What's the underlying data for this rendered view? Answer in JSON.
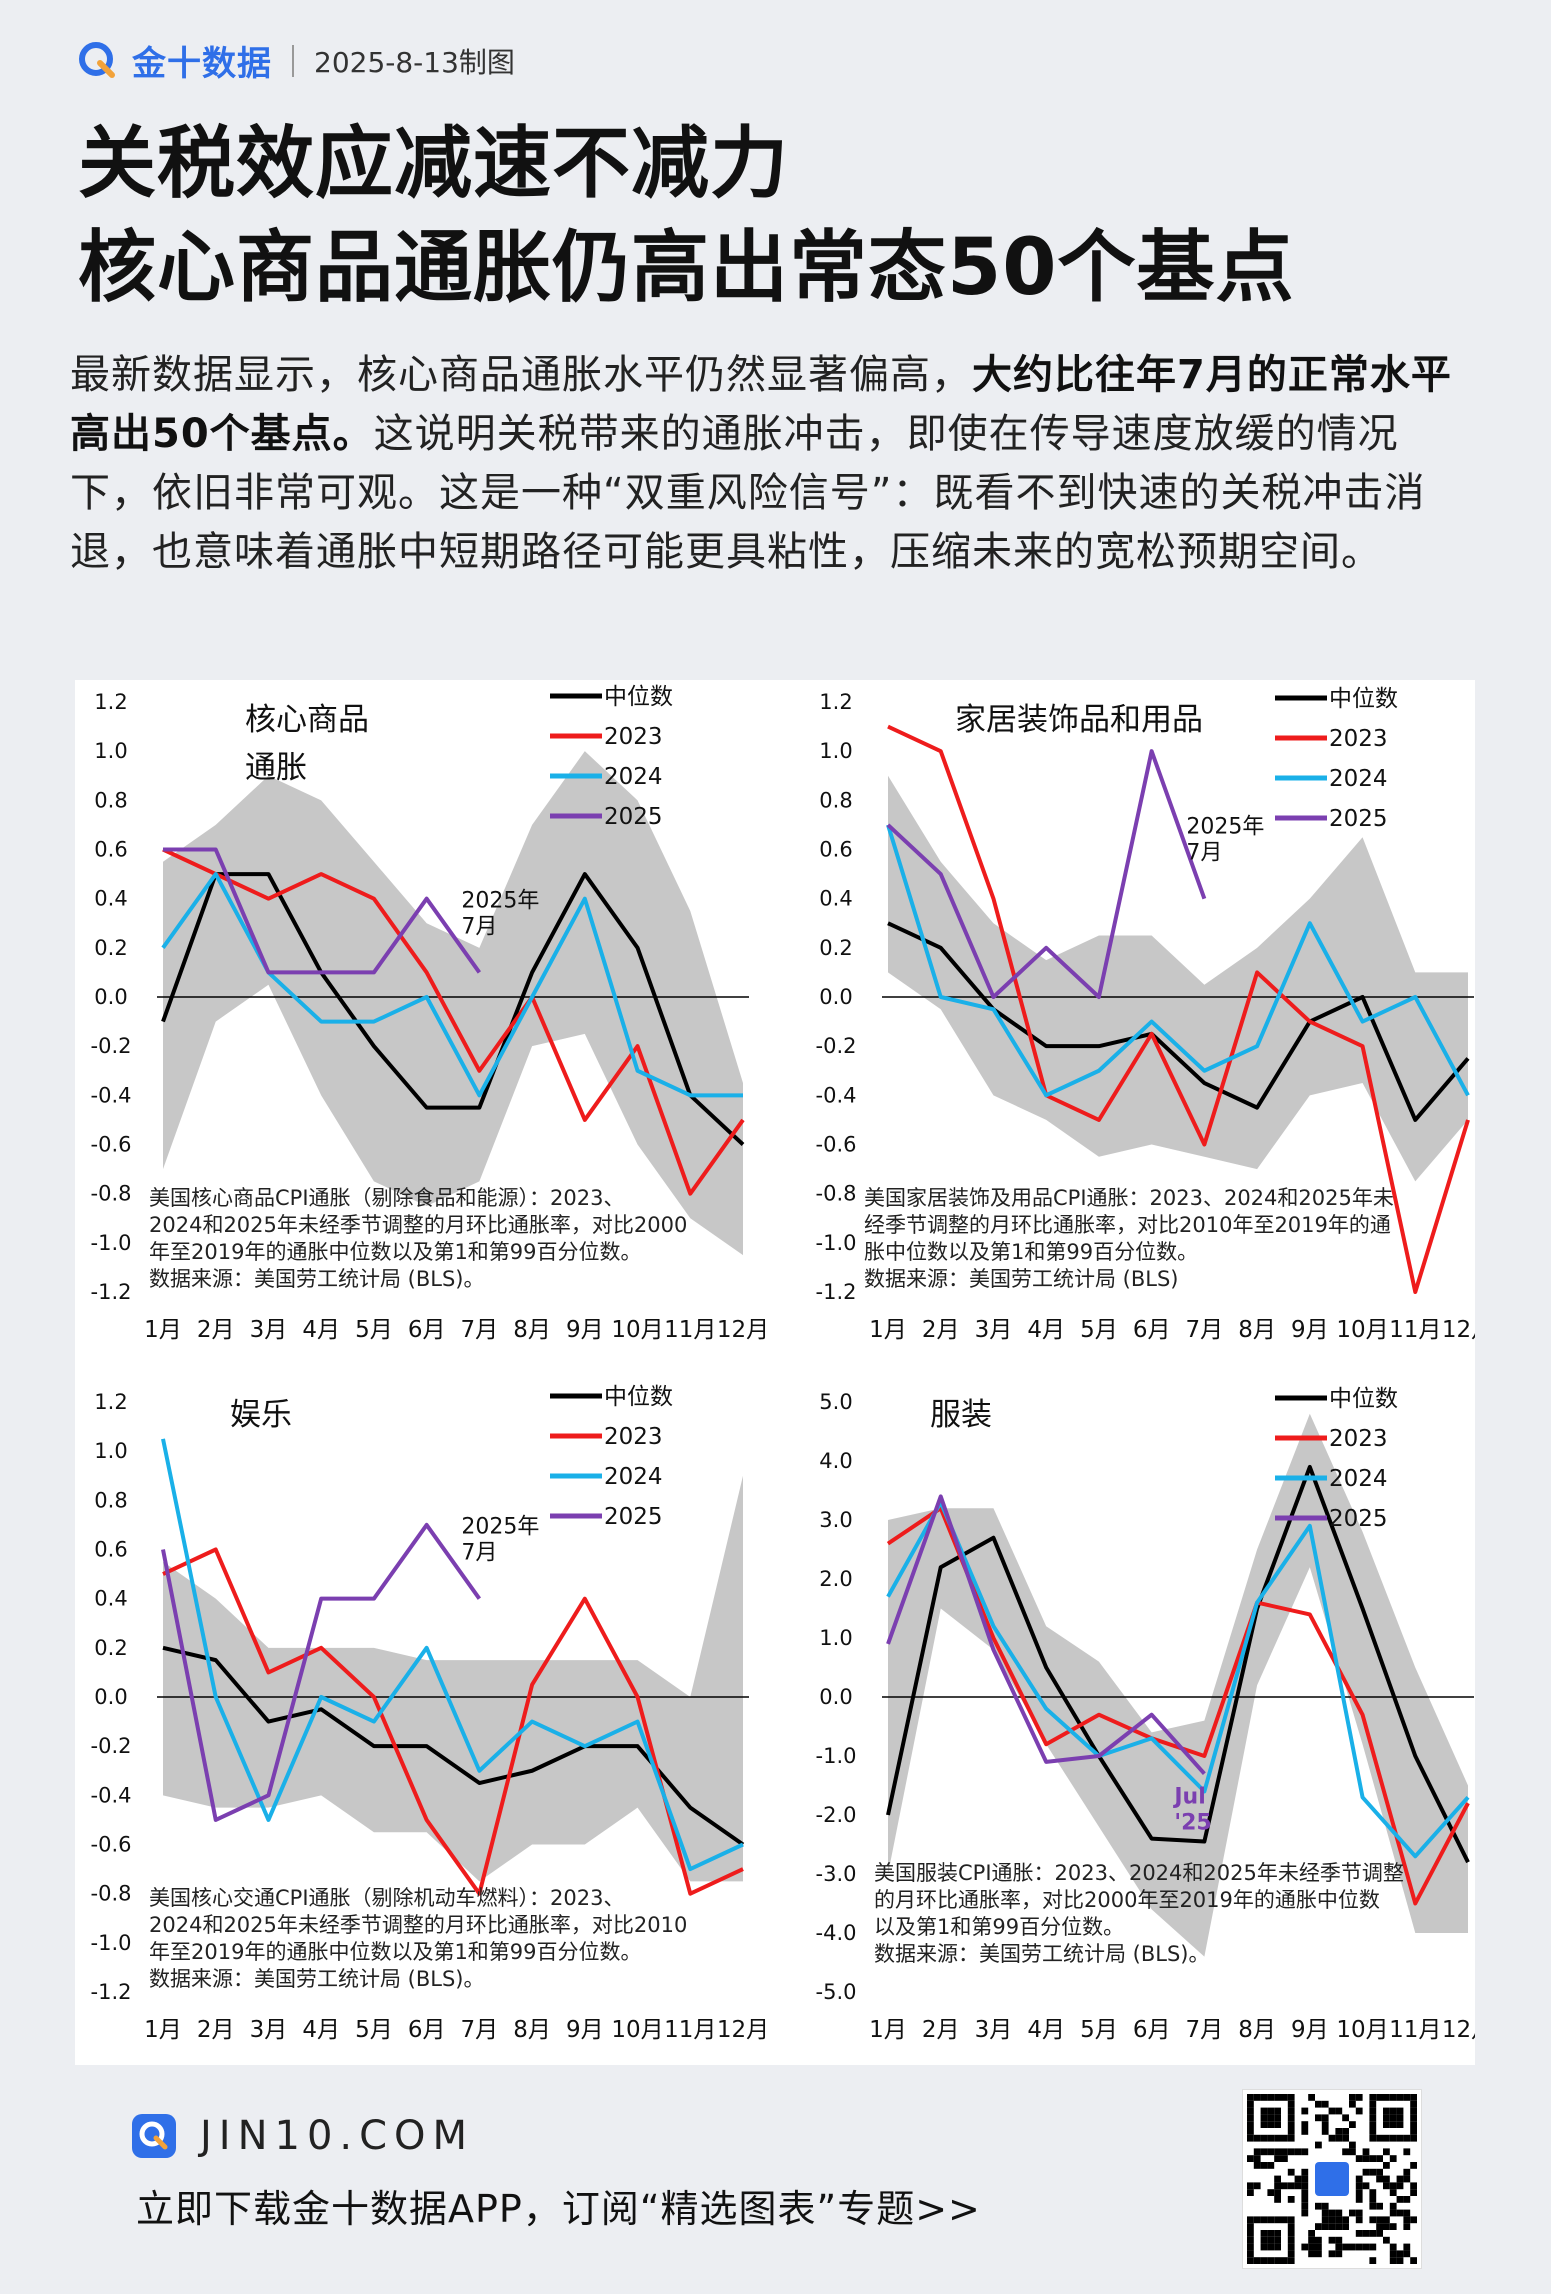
{
  "header": {
    "brand": "金十数据",
    "date": "2025-8-13制图"
  },
  "title": {
    "line1": "关税效应减速不减力",
    "line2": "核心商品通胀仍高出常态50个基点"
  },
  "description": {
    "part1": "最新数据显示，核心商品通胀水平仍然显著偏高，",
    "bold": "大约比往年7月的正常水平高出50个基点。",
    "part2": "这说明关税带来的通胀冲击，即使在传导速度放缓的情况下，依旧非常可观。这是一种“双重风险信号”：既看不到快速的关税冲击消退，也意味着通胀中短期路径可能更具粘性，压缩未来的宽松预期空间。"
  },
  "colors": {
    "median": "#000000",
    "y2023": "#ee1c1c",
    "y2024": "#1ab0e8",
    "y2025": "#7b3fb0",
    "band": "#c7c7c7",
    "brand": "#2f6fe8"
  },
  "months": [
    "1月",
    "2月",
    "3月",
    "4月",
    "5月",
    "6月",
    "7月",
    "8月",
    "9月",
    "10月",
    "11月",
    "12月"
  ],
  "legend_labels": [
    "中位数",
    "2023",
    "2024",
    "2025"
  ],
  "chart_data": [
    {
      "type": "line",
      "title": "核心商品\n通胀",
      "ylim": [
        -1.2,
        1.2
      ],
      "yticks": [
        "1.2",
        "1.0",
        "0.8",
        "0.6",
        "0.4",
        "0.2",
        "0.0",
        "-0.2",
        "-0.4",
        "-0.6",
        "-0.8",
        "-1.0",
        "-1.2"
      ],
      "band_upper": [
        0.55,
        0.7,
        0.9,
        0.8,
        0.55,
        0.3,
        0.2,
        0.7,
        1.0,
        0.8,
        0.35,
        -0.35
      ],
      "band_lower": [
        -0.7,
        -0.1,
        0.05,
        -0.4,
        -0.75,
        -0.85,
        -0.75,
        -0.2,
        -0.15,
        -0.6,
        -0.9,
        -1.05
      ],
      "series": [
        {
          "name": "中位数",
          "values": [
            -0.1,
            0.5,
            0.5,
            0.1,
            -0.2,
            -0.45,
            -0.45,
            0.1,
            0.5,
            0.2,
            -0.4,
            -0.6
          ]
        },
        {
          "name": "2023",
          "values": [
            0.6,
            0.5,
            0.4,
            0.5,
            0.4,
            0.1,
            -0.3,
            0.0,
            -0.5,
            -0.2,
            -0.8,
            -0.5
          ]
        },
        {
          "name": "2024",
          "values": [
            0.2,
            0.5,
            0.1,
            -0.1,
            -0.1,
            0.0,
            -0.4,
            0.0,
            0.4,
            -0.3,
            -0.4,
            -0.4
          ]
        },
        {
          "name": "2025",
          "values": [
            0.6,
            0.6,
            0.1,
            0.1,
            0.1,
            0.4,
            0.1
          ]
        }
      ],
      "annotation": "2025年\n7月",
      "note": "美国核心商品CPI通胀（剔除食品和能源）：2023、\n2024和2025年未经季节调整的月环比通胀率，对比2000\n年至2019年的通胀中位数以及第1和第99百分位数。\n数据来源：美国劳工统计局 (BLS)。"
    },
    {
      "type": "line",
      "title": "家居装饰品和用品",
      "ylim": [
        -1.2,
        1.2
      ],
      "yticks": [
        "1.2",
        "1.0",
        "0.8",
        "0.6",
        "0.4",
        "0.2",
        "0.0",
        "-0.2",
        "-0.4",
        "-0.6",
        "-0.8",
        "-1.0",
        "-1.2"
      ],
      "band_upper": [
        0.9,
        0.55,
        0.3,
        0.15,
        0.25,
        0.25,
        0.05,
        0.2,
        0.4,
        0.65,
        0.1,
        0.1
      ],
      "band_lower": [
        0.1,
        -0.05,
        -0.4,
        -0.5,
        -0.65,
        -0.6,
        -0.65,
        -0.7,
        -0.4,
        -0.35,
        -0.75,
        -0.5
      ],
      "series": [
        {
          "name": "中位数",
          "values": [
            0.3,
            0.2,
            -0.05,
            -0.2,
            -0.2,
            -0.15,
            -0.35,
            -0.45,
            -0.1,
            0.0,
            -0.5,
            -0.25
          ]
        },
        {
          "name": "2023",
          "values": [
            1.1,
            1.0,
            0.4,
            -0.4,
            -0.5,
            -0.15,
            -0.6,
            0.1,
            -0.1,
            -0.2,
            -1.2,
            -0.5
          ]
        },
        {
          "name": "2024",
          "values": [
            0.7,
            0.0,
            -0.05,
            -0.4,
            -0.3,
            -0.1,
            -0.3,
            -0.2,
            0.3,
            -0.1,
            0.0,
            -0.4
          ]
        },
        {
          "name": "2025",
          "values": [
            0.7,
            0.5,
            0.0,
            0.2,
            0.0,
            1.0,
            0.4
          ]
        }
      ],
      "annotation": "2025年\n7月",
      "note": "美国家居装饰及用品CPI通胀：2023、2024和2025年未\n经季节调整的月环比通胀率，对比2010年至2019年的通\n胀中位数以及第1和第99百分位数。\n数据来源：美国劳工统计局 (BLS)"
    },
    {
      "type": "line",
      "title": "娱乐",
      "ylim": [
        -1.2,
        1.2
      ],
      "yticks": [
        "1.2",
        "1.0",
        "0.8",
        "0.6",
        "0.4",
        "0.2",
        "0.0",
        "-0.2",
        "-0.4",
        "-0.6",
        "-0.8",
        "-1.0",
        "-1.2"
      ],
      "band_upper": [
        0.55,
        0.4,
        0.2,
        0.2,
        0.2,
        0.15,
        0.15,
        0.15,
        0.15,
        0.15,
        0.0,
        0.9
      ],
      "band_lower": [
        -0.4,
        -0.45,
        -0.45,
        -0.4,
        -0.55,
        -0.55,
        -0.75,
        -0.6,
        -0.6,
        -0.45,
        -0.75,
        -0.75
      ],
      "series": [
        {
          "name": "中位数",
          "values": [
            0.2,
            0.15,
            -0.1,
            -0.05,
            -0.2,
            -0.2,
            -0.35,
            -0.3,
            -0.2,
            -0.2,
            -0.45,
            -0.6
          ]
        },
        {
          "name": "2023",
          "values": [
            0.5,
            0.6,
            0.1,
            0.2,
            0.0,
            -0.5,
            -0.8,
            0.05,
            0.4,
            0.0,
            -0.8,
            -0.7
          ]
        },
        {
          "name": "2024",
          "values": [
            1.05,
            0.0,
            -0.5,
            0.0,
            -0.1,
            0.2,
            -0.3,
            -0.1,
            -0.2,
            -0.1,
            -0.7,
            -0.6
          ]
        },
        {
          "name": "2025",
          "values": [
            0.6,
            -0.5,
            -0.4,
            0.4,
            0.4,
            0.7,
            0.4
          ]
        }
      ],
      "annotation": "2025年\n7月",
      "note": "美国核心交通CPI通胀（剔除机动车燃料）：2023、\n2024和2025年未经季节调整的月环比通胀率，对比2010\n年至2019年的通胀中位数以及第1和第99百分位数。\n数据来源：美国劳工统计局 (BLS)。"
    },
    {
      "type": "line",
      "title": "服装",
      "ylim": [
        -5.0,
        5.0
      ],
      "yticks": [
        "5.0",
        "4.0",
        "3.0",
        "2.0",
        "1.0",
        "0.0",
        "-1.0",
        "-2.0",
        "-3.0",
        "-4.0",
        "-5.0"
      ],
      "band_upper": [
        3.0,
        3.2,
        3.2,
        1.2,
        0.6,
        -0.6,
        -0.4,
        2.5,
        4.8,
        2.8,
        0.5,
        -1.5
      ],
      "band_lower": [
        -3.0,
        1.5,
        0.8,
        -0.8,
        -2.2,
        -3.6,
        -4.4,
        0.2,
        2.2,
        -0.8,
        -4.0,
        -4.0
      ],
      "series": [
        {
          "name": "中位数",
          "values": [
            -2.0,
            2.2,
            2.7,
            0.5,
            -1.0,
            -2.4,
            -2.45,
            1.5,
            3.9,
            1.5,
            -1.0,
            -2.8
          ]
        },
        {
          "name": "2023",
          "values": [
            2.6,
            3.2,
            1.0,
            -0.8,
            -0.3,
            -0.7,
            -1.0,
            1.6,
            1.4,
            -0.3,
            -3.5,
            -1.8
          ]
        },
        {
          "name": "2024",
          "values": [
            1.7,
            3.3,
            1.2,
            -0.2,
            -1.0,
            -0.7,
            -1.6,
            1.6,
            2.9,
            -1.7,
            -2.7,
            -1.7
          ]
        },
        {
          "name": "2025",
          "values": [
            0.9,
            3.4,
            0.8,
            -1.1,
            -1.0,
            -0.3,
            -1.3
          ]
        }
      ],
      "annotation": "Jul\n'25",
      "note": "美国服装CPI通胀：2023、2024和2025年未经季节调整\n的月环比通胀率，对比2000年至2019年的通胀中位数\n以及第1和第99百分位数。\n数据来源：美国劳工统计局 (BLS)。"
    }
  ],
  "footer": {
    "site": "JIN10.COM",
    "cta": "立即下载金十数据APP，订阅“精选图表”专题>>"
  }
}
